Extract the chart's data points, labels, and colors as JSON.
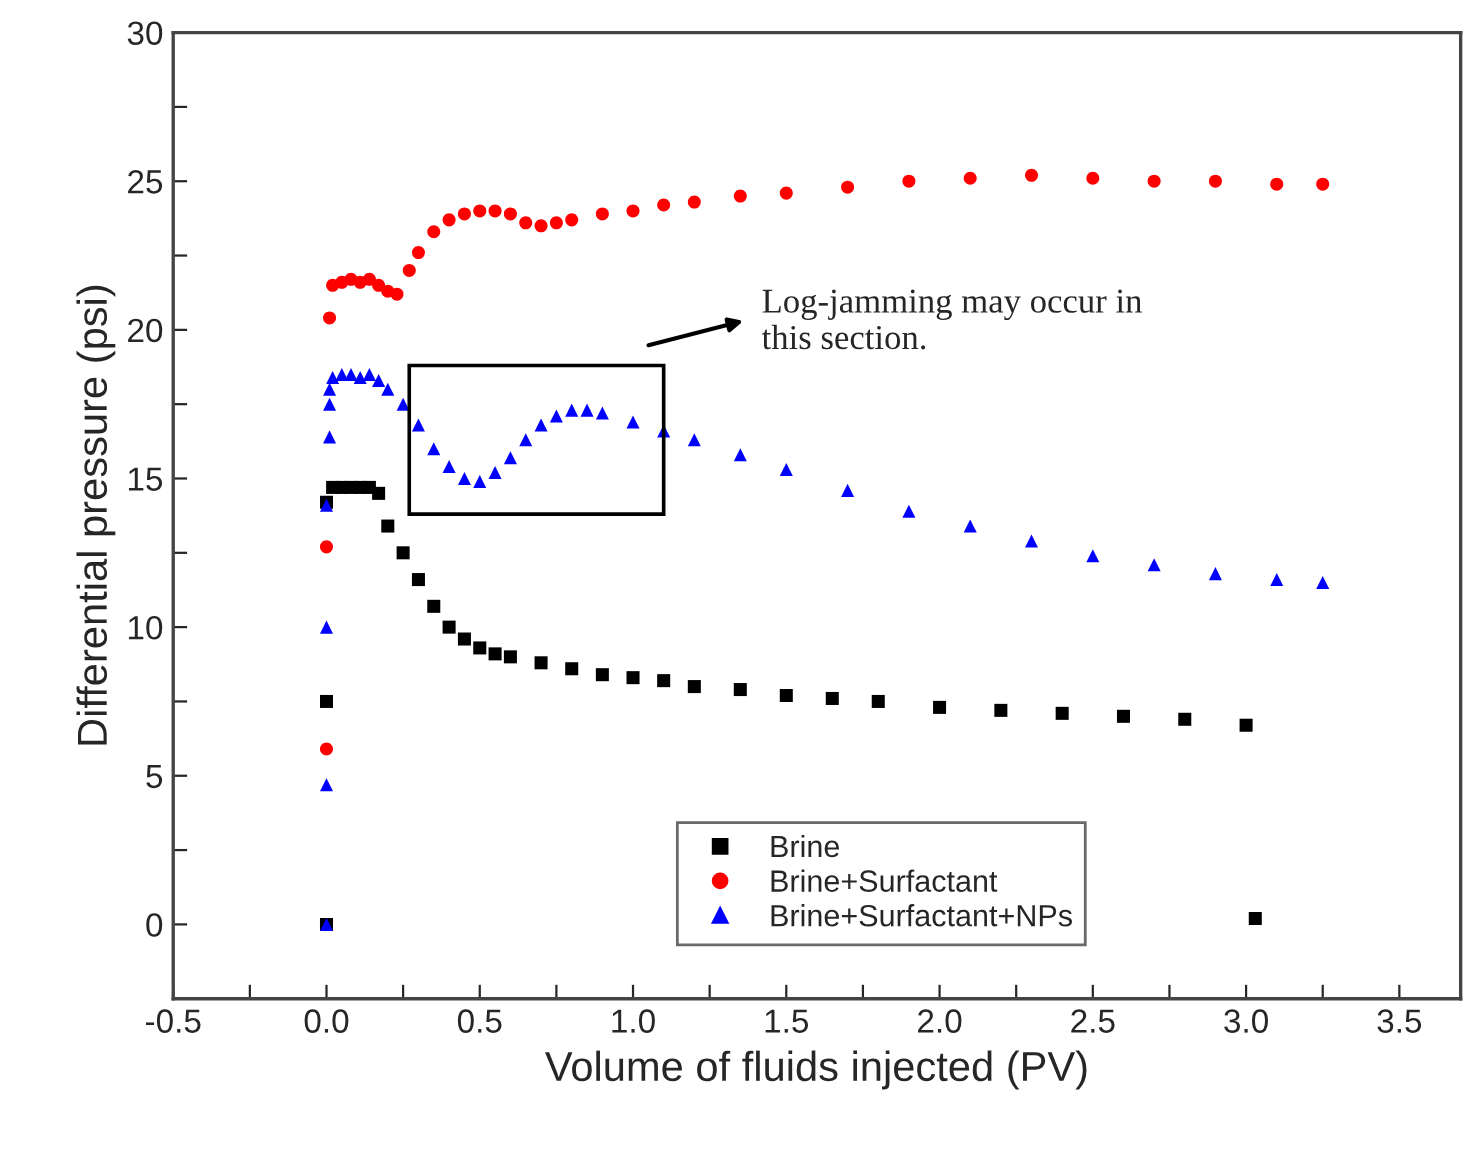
{
  "chart_data": {
    "type": "scatter",
    "xlabel": "Volume of fluids injected (PV)",
    "ylabel": "Differential pressure (psi)",
    "xlim": [
      -0.5,
      3.7
    ],
    "ylim": [
      -2.5,
      30
    ],
    "xticks": [
      -0.5,
      {
        "value": -0.25,
        "label": null
      },
      {
        "value": 0,
        "label": "0.0"
      },
      {
        "value": 0.25,
        "label": null
      },
      0.5,
      {
        "value": 0.75,
        "label": null
      },
      {
        "value": 1,
        "label": "1.0"
      },
      {
        "value": 1.25,
        "label": null
      },
      1.5,
      {
        "value": 1.75,
        "label": null
      },
      {
        "value": 2,
        "label": "2.0"
      },
      {
        "value": 2.25,
        "label": null
      },
      2.5,
      {
        "value": 2.75,
        "label": null
      },
      {
        "value": 3,
        "label": "3.0"
      },
      {
        "value": 3.25,
        "label": null
      },
      3.5
    ],
    "yticks": [
      {
        "value": -2.5,
        "label": null
      },
      0,
      {
        "value": 2.5,
        "label": null
      },
      5,
      {
        "value": 7.5,
        "label": null
      },
      10,
      {
        "value": 12.5,
        "label": null
      },
      15,
      {
        "value": 17.5,
        "label": null
      },
      20,
      {
        "value": 22.5,
        "label": null
      },
      25,
      {
        "value": 27.5,
        "label": null
      },
      30
    ],
    "grid": false,
    "legend": "bottom",
    "annotations": [
      "Log-jamming may occur in\nthis section."
    ],
    "series": [
      {
        "name": "Brine",
        "color": "#000000",
        "marker": "square",
        "x": [
          0.0,
          0.0,
          0.0,
          0.02,
          0.05,
          0.08,
          0.11,
          0.14,
          0.17,
          0.2,
          0.25,
          0.3,
          0.35,
          0.4,
          0.45,
          0.5,
          0.55,
          0.6,
          0.7,
          0.8,
          0.9,
          1.0,
          1.1,
          1.2,
          1.35,
          1.5,
          1.65,
          1.8,
          2.0,
          2.2,
          2.4,
          2.6,
          2.8,
          3.0,
          3.03
        ],
        "values": [
          0.0,
          7.5,
          14.2,
          14.7,
          14.7,
          14.7,
          14.7,
          14.7,
          14.5,
          13.4,
          12.5,
          11.6,
          10.7,
          10.0,
          9.6,
          9.3,
          9.1,
          9.0,
          8.8,
          8.6,
          8.4,
          8.3,
          8.2,
          8.0,
          7.9,
          7.7,
          7.6,
          7.5,
          7.3,
          7.2,
          7.1,
          7.0,
          6.9,
          6.7,
          0.2
        ]
      },
      {
        "name": "Brine+Surfactant",
        "color": "#ff0000",
        "marker": "circle",
        "x": [
          0.0,
          0.0,
          0.01,
          0.02,
          0.05,
          0.08,
          0.11,
          0.14,
          0.17,
          0.2,
          0.23,
          0.27,
          0.3,
          0.35,
          0.4,
          0.45,
          0.5,
          0.55,
          0.6,
          0.65,
          0.7,
          0.75,
          0.8,
          0.9,
          1.0,
          1.1,
          1.2,
          1.35,
          1.5,
          1.7,
          1.9,
          2.1,
          2.3,
          2.5,
          2.7,
          2.9,
          3.1,
          3.25
        ],
        "values": [
          5.9,
          12.7,
          20.4,
          21.5,
          21.6,
          21.7,
          21.6,
          21.7,
          21.5,
          21.3,
          21.2,
          22.0,
          22.6,
          23.3,
          23.7,
          23.9,
          24.0,
          24.0,
          23.9,
          23.6,
          23.5,
          23.6,
          23.7,
          23.9,
          24.0,
          24.2,
          24.3,
          24.5,
          24.6,
          24.8,
          25.0,
          25.1,
          25.2,
          25.1,
          25.0,
          25.0,
          24.9,
          24.9
        ]
      },
      {
        "name": "Brine+Surfactant+NPs",
        "color": "#0000ff",
        "marker": "triangle",
        "x": [
          0.0,
          0.0,
          0.0,
          0.0,
          0.01,
          0.01,
          0.01,
          0.02,
          0.05,
          0.08,
          0.11,
          0.14,
          0.17,
          0.2,
          0.25,
          0.3,
          0.35,
          0.4,
          0.45,
          0.5,
          0.55,
          0.6,
          0.65,
          0.7,
          0.75,
          0.8,
          0.85,
          0.9,
          1.0,
          1.1,
          1.2,
          1.35,
          1.5,
          1.7,
          1.9,
          2.1,
          2.3,
          2.5,
          2.7,
          2.9,
          3.1,
          3.25
        ],
        "values": [
          0.0,
          4.7,
          10.0,
          14.1,
          16.4,
          17.5,
          18.0,
          18.4,
          18.5,
          18.5,
          18.4,
          18.5,
          18.3,
          18.0,
          17.5,
          16.8,
          16.0,
          15.4,
          15.0,
          14.9,
          15.2,
          15.7,
          16.3,
          16.8,
          17.1,
          17.3,
          17.3,
          17.2,
          16.9,
          16.6,
          16.3,
          15.8,
          15.3,
          14.6,
          13.9,
          13.4,
          12.9,
          12.4,
          12.1,
          11.8,
          11.6,
          11.5
        ]
      }
    ]
  }
}
